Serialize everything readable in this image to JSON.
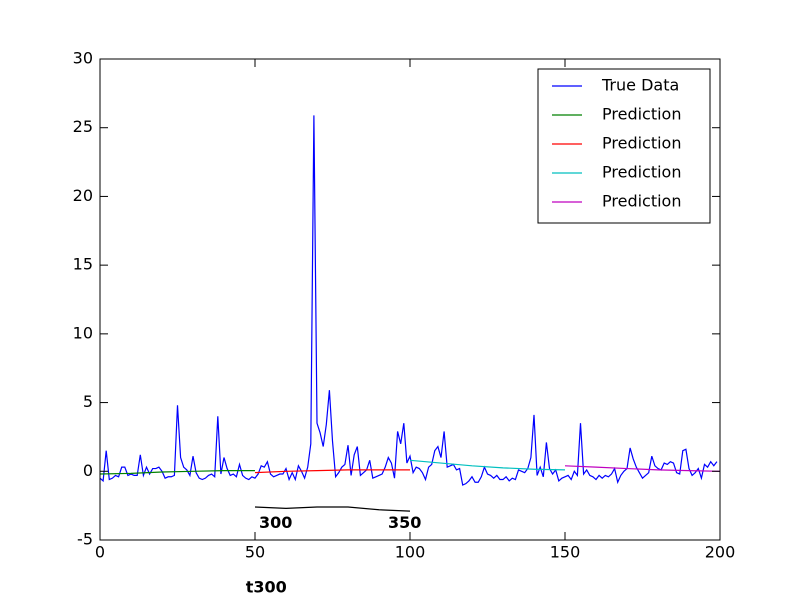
{
  "chart_data": {
    "type": "line",
    "xlim": [
      0,
      200
    ],
    "ylim": [
      -5,
      30
    ],
    "xticks": [
      0,
      50,
      100,
      150,
      200
    ],
    "yticks": [
      -5,
      0,
      5,
      10,
      15,
      20,
      25,
      30
    ],
    "legend": "upper right",
    "series": [
      {
        "name": "True Data",
        "color": "#0000ff",
        "x": [
          0,
          1,
          2,
          3,
          4,
          5,
          6,
          7,
          8,
          9,
          10,
          11,
          12,
          13,
          14,
          15,
          16,
          17,
          18,
          19,
          20,
          21,
          22,
          23,
          24,
          25,
          26,
          27,
          28,
          29,
          30,
          31,
          32,
          33,
          34,
          35,
          36,
          37,
          38,
          39,
          40,
          41,
          42,
          43,
          44,
          45,
          46,
          47,
          48,
          49,
          50,
          51,
          52,
          53,
          54,
          55,
          56,
          57,
          58,
          59,
          60,
          61,
          62,
          63,
          64,
          65,
          66,
          67,
          68,
          69,
          70,
          71,
          72,
          73,
          74,
          75,
          76,
          77,
          78,
          79,
          80,
          81,
          82,
          83,
          84,
          85,
          86,
          87,
          88,
          89,
          90,
          91,
          92,
          93,
          94,
          95,
          96,
          97,
          98,
          99,
          100,
          101,
          102,
          103,
          104,
          105,
          106,
          107,
          108,
          109,
          110,
          111,
          112,
          113,
          114,
          115,
          116,
          117,
          118,
          119,
          120,
          121,
          122,
          123,
          124,
          125,
          126,
          127,
          128,
          129,
          130,
          131,
          132,
          133,
          134,
          135,
          136,
          137,
          138,
          139,
          140,
          141,
          142,
          143,
          144,
          145,
          146,
          147,
          148,
          149,
          150,
          151,
          152,
          153,
          154,
          155,
          156,
          157,
          158,
          159,
          160,
          161,
          162,
          163,
          164,
          165,
          166,
          167,
          168,
          169,
          170,
          171,
          172,
          173,
          174,
          175,
          176,
          177,
          178,
          179,
          180,
          181,
          182,
          183,
          184,
          185,
          186,
          187,
          188,
          189,
          190,
          191,
          192,
          193,
          194,
          195,
          196,
          197,
          198,
          199
        ],
        "values": [
          -0.5,
          -0.7,
          1.5,
          -0.6,
          -0.5,
          -0.3,
          -0.4,
          0.3,
          0.3,
          -0.3,
          -0.2,
          -0.3,
          -0.3,
          1.2,
          -0.3,
          0.3,
          -0.2,
          0.2,
          0.2,
          0.3,
          0.0,
          -0.5,
          -0.4,
          -0.4,
          -0.3,
          4.8,
          1.0,
          0.3,
          0.1,
          -0.3,
          1.1,
          -0.1,
          -0.5,
          -0.6,
          -0.5,
          -0.3,
          -0.2,
          -0.4,
          4.0,
          -0.2,
          1.0,
          0.2,
          -0.3,
          -0.2,
          -0.4,
          0.5,
          -0.3,
          -0.5,
          -0.6,
          -0.4,
          -0.5,
          -0.2,
          0.4,
          0.3,
          0.7,
          -0.2,
          -0.4,
          -0.3,
          -0.2,
          -0.2,
          0.2,
          -0.6,
          -0.1,
          -0.6,
          0.4,
          0.0,
          -0.5,
          0.3,
          2.0,
          25.9,
          3.5,
          2.8,
          1.8,
          3.4,
          5.9,
          2.2,
          -0.4,
          -0.1,
          0.3,
          0.5,
          1.9,
          -0.3,
          1.2,
          1.8,
          -0.3,
          -0.1,
          0.1,
          0.8,
          -0.5,
          -0.4,
          -0.3,
          -0.2,
          0.3,
          1.0,
          0.6,
          -0.5,
          2.9,
          2.0,
          3.5,
          0.6,
          1.1,
          -0.1,
          0.3,
          0.2,
          -0.1,
          -0.6,
          0.3,
          0.5,
          1.5,
          1.8,
          1.0,
          2.9,
          0.3,
          0.4,
          0.5,
          0.1,
          0.2,
          -1.0,
          -0.9,
          -0.7,
          -0.4,
          -0.8,
          -0.8,
          -0.4,
          0.3,
          -0.2,
          -0.3,
          -0.5,
          -0.3,
          -0.6,
          -0.6,
          -0.4,
          -0.7,
          -0.5,
          -0.6,
          0.1,
          0.0,
          -0.1,
          0.2,
          1.0,
          4.1,
          -0.3,
          0.3,
          -0.4,
          2.1,
          0.2,
          -0.2,
          0.1,
          -0.7,
          -0.5,
          -0.4,
          -0.3,
          -0.6,
          0.0,
          -0.3,
          3.5,
          -0.2,
          0.1,
          -0.3,
          -0.4,
          -0.6,
          -0.3,
          -0.5,
          -0.3,
          -0.4,
          -0.2,
          0.2,
          -0.8,
          -0.3,
          0.0,
          0.2,
          1.7,
          0.9,
          0.3,
          -0.1,
          -0.5,
          -0.3,
          -0.1,
          1.1,
          0.4,
          0.2,
          0.1,
          0.6,
          0.5,
          0.7,
          0.6,
          -0.1,
          -0.2,
          1.5,
          1.6,
          0.2,
          -0.3,
          -0.1,
          0.2,
          -0.5,
          0.5,
          0.3,
          0.7,
          0.4,
          0.7
        ]
      },
      {
        "name": "Prediction",
        "color": "#008000",
        "x": [
          0,
          10,
          20,
          30,
          40,
          50
        ],
        "values": [
          -0.2,
          -0.15,
          -0.05,
          0.0,
          0.05,
          0.05
        ]
      },
      {
        "name": "Prediction",
        "color": "#ff0000",
        "x": [
          50,
          60,
          70,
          80,
          90,
          100
        ],
        "values": [
          -0.1,
          0.0,
          0.05,
          0.1,
          0.1,
          0.1
        ]
      },
      {
        "name": "Prediction",
        "color": "#00bfbf",
        "x": [
          100,
          110,
          120,
          130,
          140,
          150
        ],
        "values": [
          0.8,
          0.6,
          0.4,
          0.25,
          0.15,
          0.1
        ]
      },
      {
        "name": "Prediction",
        "color": "#bf00bf",
        "x": [
          150,
          160,
          170,
          180,
          190,
          200
        ],
        "values": [
          0.4,
          0.3,
          0.2,
          0.1,
          0.05,
          0.0
        ]
      }
    ],
    "extra_line": {
      "color": "#000000",
      "x": [
        50,
        60,
        70,
        80,
        90,
        100
      ],
      "values": [
        -2.6,
        -2.7,
        -2.6,
        -2.6,
        -2.8,
        -2.9
      ]
    },
    "annotations": [
      {
        "text": "300",
        "x": 51.3,
        "y": -3.8
      },
      {
        "text": "350",
        "x": 92.9,
        "y": -3.8
      },
      {
        "text": "t300",
        "x": 47,
        "y": -8.5
      }
    ]
  }
}
